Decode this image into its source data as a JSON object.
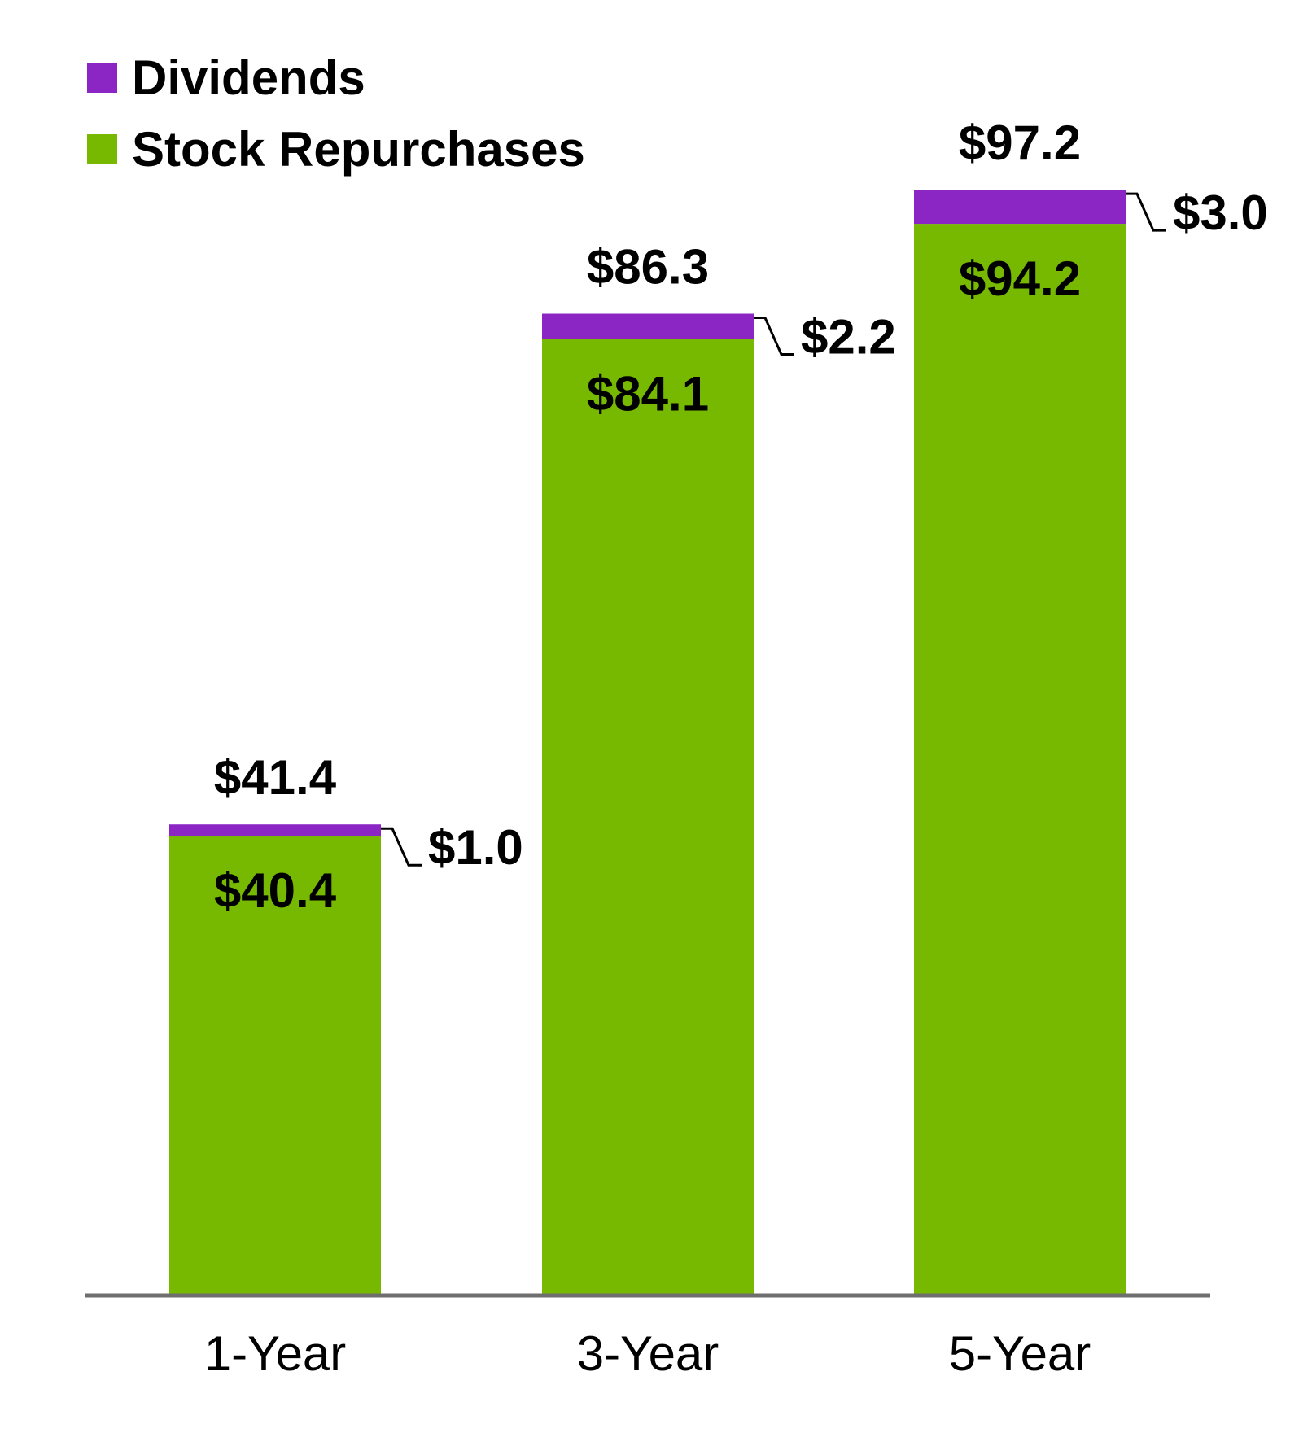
{
  "chart_data": {
    "type": "bar",
    "stacked": true,
    "categories": [
      "1-Year",
      "3-Year",
      "5-Year"
    ],
    "series": [
      {
        "name": "Stock Repurchases",
        "color": "#76b900",
        "values": [
          40.4,
          84.1,
          94.2
        ],
        "labels": [
          "$40.4",
          "$84.1",
          "$94.2"
        ]
      },
      {
        "name": "Dividends",
        "color": "#8b25c4",
        "values": [
          1.0,
          2.2,
          3.0
        ],
        "labels": [
          "$1.0",
          "$2.2",
          "$3.0"
        ]
      }
    ],
    "totals": [
      41.4,
      86.3,
      97.2
    ],
    "total_labels": [
      "$41.4",
      "$86.3",
      "$97.2"
    ],
    "title": "",
    "xlabel": "",
    "ylabel": "",
    "ylim": [
      0,
      100
    ],
    "grid": false,
    "legend": {
      "position": "top-left",
      "items": [
        {
          "label": "Dividends",
          "color": "#8b25c4"
        },
        {
          "label": "Stock Repurchases",
          "color": "#76b900"
        }
      ]
    },
    "axis_color": "#6e6e6e"
  }
}
